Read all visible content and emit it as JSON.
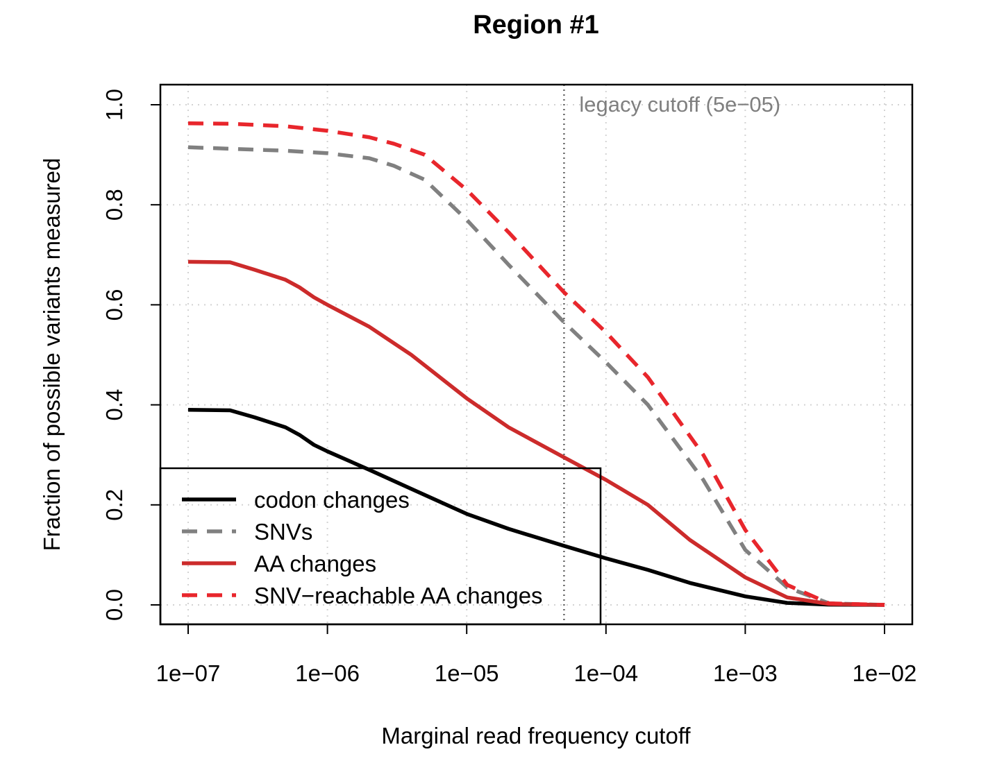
{
  "chart_data": {
    "type": "line",
    "title": "Region #1",
    "xlabel": "Marginal read frequency cutoff",
    "ylabel": "Fraction of possible variants measured",
    "x_scale": "log10",
    "xlim": [
      1e-07,
      0.01
    ],
    "ylim": [
      0,
      1
    ],
    "x_ticks": [
      1e-07,
      1e-06,
      1e-05,
      0.0001,
      0.001,
      0.01
    ],
    "x_tick_labels": [
      "1e−07",
      "1e−06",
      "1e−05",
      "1e−04",
      "1e−03",
      "1e−02"
    ],
    "y_ticks": [
      0,
      0.2,
      0.4,
      0.6,
      0.8,
      1.0
    ],
    "y_tick_labels": [
      "0.0",
      "0.2",
      "0.4",
      "0.6",
      "0.8",
      "1.0"
    ],
    "grid": true,
    "vline": {
      "x": 5e-05,
      "label": "legacy cutoff (5e−05)",
      "color": "#666666"
    },
    "legend_position": "bottom-left",
    "series": [
      {
        "name": "codon changes",
        "color": "#000000",
        "dash": "solid",
        "x": [
          1e-07,
          2e-07,
          3e-07,
          5e-07,
          6.3e-07,
          8e-07,
          1e-06,
          2e-06,
          4e-06,
          1e-05,
          2e-05,
          5e-05,
          0.0001,
          0.0002,
          0.0004,
          0.001,
          0.002,
          0.004,
          0.01
        ],
        "values": [
          0.39,
          0.389,
          0.375,
          0.355,
          0.34,
          0.32,
          0.307,
          0.27,
          0.232,
          0.182,
          0.152,
          0.118,
          0.093,
          0.07,
          0.044,
          0.017,
          0.004,
          0.0005,
          0.0
        ]
      },
      {
        "name": "SNVs",
        "color": "#808080",
        "dash": "dashed",
        "x": [
          1e-07,
          2e-07,
          5e-07,
          1e-06,
          2e-06,
          3e-06,
          5e-06,
          1e-05,
          2e-05,
          5e-05,
          0.0001,
          0.0002,
          0.0005,
          0.001,
          0.002,
          0.004,
          0.01
        ],
        "values": [
          0.915,
          0.912,
          0.908,
          0.903,
          0.893,
          0.878,
          0.85,
          0.77,
          0.68,
          0.565,
          0.485,
          0.4,
          0.25,
          0.11,
          0.035,
          0.003,
          0.0
        ]
      },
      {
        "name": "AA changes",
        "color": "#cc2b2b",
        "dash": "solid",
        "x": [
          1e-07,
          2e-07,
          3e-07,
          5e-07,
          6.3e-07,
          8e-07,
          1e-06,
          2e-06,
          4e-06,
          1e-05,
          2e-05,
          5e-05,
          0.0001,
          0.0002,
          0.0004,
          0.001,
          0.002,
          0.004,
          0.01
        ],
        "values": [
          0.686,
          0.685,
          0.67,
          0.65,
          0.635,
          0.615,
          0.6,
          0.556,
          0.5,
          0.413,
          0.355,
          0.295,
          0.25,
          0.2,
          0.13,
          0.055,
          0.015,
          0.002,
          0.0
        ]
      },
      {
        "name": "SNV−reachable AA changes",
        "color": "#e8262c",
        "dash": "dashed",
        "x": [
          1e-07,
          2e-07,
          5e-07,
          1e-06,
          2e-06,
          3e-06,
          5e-06,
          1e-05,
          2e-05,
          5e-05,
          0.0001,
          0.0002,
          0.0005,
          0.001,
          0.002,
          0.004,
          0.01
        ],
        "values": [
          0.963,
          0.962,
          0.957,
          0.948,
          0.935,
          0.922,
          0.9,
          0.83,
          0.745,
          0.625,
          0.545,
          0.455,
          0.3,
          0.15,
          0.04,
          0.003,
          0.0
        ]
      }
    ]
  }
}
